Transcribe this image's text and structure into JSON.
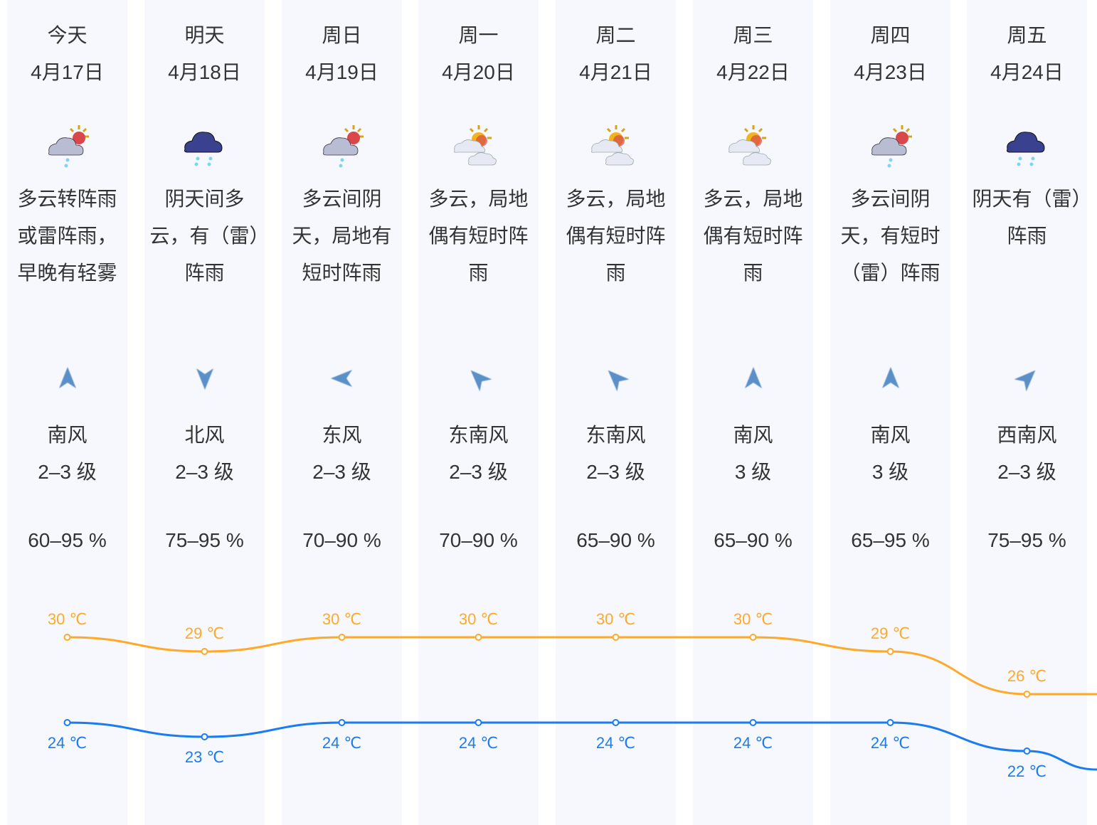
{
  "colors": {
    "high": "#ffa92b",
    "low": "#1a7cf0",
    "column_bg": "#f6f8fd",
    "arrow": "#5b8fc7"
  },
  "days": [
    {
      "weekday": "今天",
      "date": "4月17日",
      "icon": "partly-cloudy-rain-icon",
      "desc": "多云转阵雨或雷阵雨，早晚有轻雾",
      "wind_dir": "南风",
      "wind_level": "2–3 级",
      "wind_arrow_deg": 0,
      "humidity": "60–95 %",
      "high": "30 ℃",
      "low": "24 ℃",
      "high_val": 30,
      "low_val": 24
    },
    {
      "weekday": "明天",
      "date": "4月18日",
      "icon": "overcast-rain-icon",
      "desc": "阴天间多云，有（雷）阵雨",
      "wind_dir": "北风",
      "wind_level": "2–3 级",
      "wind_arrow_deg": 180,
      "humidity": "75–95 %",
      "high": "29 ℃",
      "low": "23 ℃",
      "high_val": 29,
      "low_val": 23
    },
    {
      "weekday": "周日",
      "date": "4月19日",
      "icon": "partly-cloudy-rain-icon",
      "desc": "多云间阴天，局地有短时阵雨",
      "wind_dir": "东风",
      "wind_level": "2–3 级",
      "wind_arrow_deg": 270,
      "humidity": "70–90 %",
      "high": "30 ℃",
      "low": "24 ℃",
      "high_val": 30,
      "low_val": 24
    },
    {
      "weekday": "周一",
      "date": "4月20日",
      "icon": "sun-cloud-icon",
      "desc": "多云，局地偶有短时阵雨",
      "wind_dir": "东南风",
      "wind_level": "2–3 级",
      "wind_arrow_deg": 315,
      "humidity": "70–90 %",
      "high": "30 ℃",
      "low": "24 ℃",
      "high_val": 30,
      "low_val": 24
    },
    {
      "weekday": "周二",
      "date": "4月21日",
      "icon": "sun-cloud-icon",
      "desc": "多云，局地偶有短时阵雨",
      "wind_dir": "东南风",
      "wind_level": "2–3 级",
      "wind_arrow_deg": 315,
      "humidity": "65–90 %",
      "high": "30 ℃",
      "low": "24 ℃",
      "high_val": 30,
      "low_val": 24
    },
    {
      "weekday": "周三",
      "date": "4月22日",
      "icon": "sun-cloud-icon",
      "desc": "多云，局地偶有短时阵雨",
      "wind_dir": "南风",
      "wind_level": "3 级",
      "wind_arrow_deg": 0,
      "humidity": "65–90 %",
      "high": "30 ℃",
      "low": "24 ℃",
      "high_val": 30,
      "low_val": 24
    },
    {
      "weekday": "周四",
      "date": "4月23日",
      "icon": "partly-cloudy-rain-icon",
      "desc": "多云间阴天，有短时（雷）阵雨",
      "wind_dir": "南风",
      "wind_level": "3 级",
      "wind_arrow_deg": 0,
      "humidity": "65–95 %",
      "high": "29 ℃",
      "low": "24 ℃",
      "high_val": 29,
      "low_val": 24
    },
    {
      "weekday": "周五",
      "date": "4月24日",
      "icon": "overcast-rain-icon",
      "desc": "阴天有（雷）阵雨",
      "wind_dir": "西南风",
      "wind_level": "2–3 级",
      "wind_arrow_deg": 45,
      "humidity": "75–95 %",
      "high": "26 ℃",
      "low": "22 ℃",
      "high_val": 26,
      "low_val": 22
    }
  ]
}
